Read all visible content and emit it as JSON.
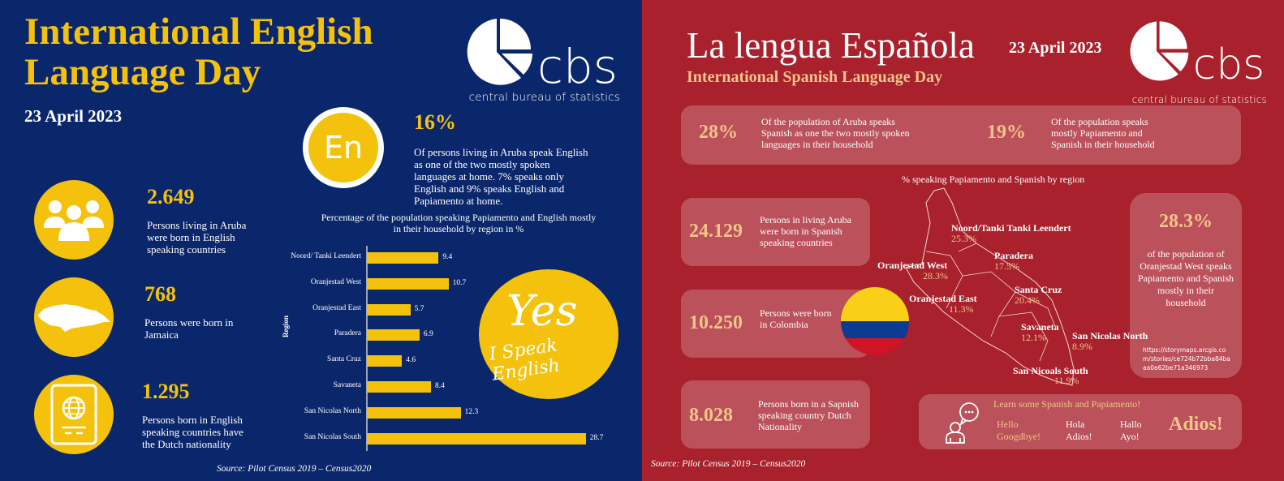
{
  "left_panel": {
    "title_line1": "International English",
    "title_line2": "Language Day",
    "date": "23 April 2023",
    "logo": {
      "mark": "cbs",
      "subtitle": "central bureau of statistics"
    },
    "badge": {
      "icon": "En"
    },
    "headline_stat": {
      "value": "16%",
      "description": "Of persons living in Aruba speak English as one of the two mostly spoken languages at home. 7% speaks only English and 9% speaks English and Papiamento at home."
    },
    "stats": [
      {
        "icon": "people-group-icon",
        "value": "2.649",
        "description": "Persons living in Aruba were born in English speaking countries"
      },
      {
        "icon": "jamaica-map-icon",
        "value": "768",
        "description": "Persons were born in Jamaica"
      },
      {
        "icon": "passport-icon",
        "value": "1.295",
        "description": "Persons born in English speaking countries have the Dutch nationality"
      }
    ],
    "slogan": {
      "line1": "Yes",
      "line2": "I Speak English"
    },
    "source": "Source: Pilot Census 2019 – Census2020"
  },
  "chart_data": {
    "type": "bar",
    "orientation": "horizontal",
    "title": "Percentage of the population speaking Papiamento and English mostly in their household by region in %",
    "xlabel": "",
    "ylabel": "Region",
    "categories": [
      "Noord/ Tanki Leendert",
      "Oranjestad West",
      "Oranjestad East",
      "Paradera",
      "Santa Cruz",
      "Savaneta",
      "San Nicolas North",
      "San Nicolas South"
    ],
    "values": [
      9.4,
      10.7,
      5.7,
      6.9,
      4.6,
      8.4,
      12.3,
      28.7
    ],
    "value_labels": [
      "9.4",
      "10.7",
      "5.7",
      "6.9",
      "4.6",
      "8.4",
      "12.3",
      "28.7"
    ],
    "grid": false,
    "legend": null,
    "bar_color": "#f4c20d"
  },
  "right_panel": {
    "title": "La lengua Española",
    "date": "23 April 2023",
    "subtitle": "International Spanish Language Day",
    "logo": {
      "mark": "cbs",
      "subtitle": "central bureau of statistics"
    },
    "top_box": [
      {
        "value": "28%",
        "description": "Of the population of Aruba speaks Spanish as one the two mostly spoken languages in their household"
      },
      {
        "value": "19%",
        "description": "Of the population speaks mostly Papiamento and Spanish in their household"
      }
    ],
    "stats": [
      {
        "value": "24.129",
        "description": "Persons in living Aruba were born in Spanish speaking countries"
      },
      {
        "value": "10.250",
        "description": "Persons were born in Colombia"
      },
      {
        "value": "8.028",
        "description": "Persons born in a Sapnish speaking country Dutch Nationality"
      }
    ],
    "map": {
      "title": "% speaking Papiamento and Spanish by region",
      "regions": [
        {
          "name": "Noord/Tanki Tanki Leendert",
          "pct": "25.3%"
        },
        {
          "name": "Paradera",
          "pct": "17.5%"
        },
        {
          "name": "Oranjestad West",
          "pct": "28.3%"
        },
        {
          "name": "Santa Cruz",
          "pct": "20.4%"
        },
        {
          "name": "Oranjestad East",
          "pct": "11.3%"
        },
        {
          "name": "Savaneta",
          "pct": "12.1%"
        },
        {
          "name": "San Nicolas North",
          "pct": "8.9%"
        },
        {
          "name": "San Nicoals South",
          "pct": "11.9%"
        }
      ]
    },
    "highlight": {
      "value": "28.3%",
      "description": "of the population of Oranjestad West speaks Papiamento and Spanish mostly in their household",
      "url": "https://storymaps.arcgis.com/stories/ce724b72bba84baaa0e62be71a346973"
    },
    "learn": {
      "heading": "Learn some Spanish and Papiamento!",
      "english": [
        "Hello",
        "Googdbye!"
      ],
      "spanish": [
        "Hola",
        "Adios!"
      ],
      "papiamento": [
        "Hallo",
        "Ayo!"
      ],
      "big_word": "Adios!"
    },
    "source": "Source: Pilot Census 2019 – Census2020"
  },
  "colors": {
    "left_bg": "#0b276b",
    "right_bg": "#a8212c",
    "accent_yellow": "#f4c20d",
    "accent_peach": "#f3c48b"
  }
}
